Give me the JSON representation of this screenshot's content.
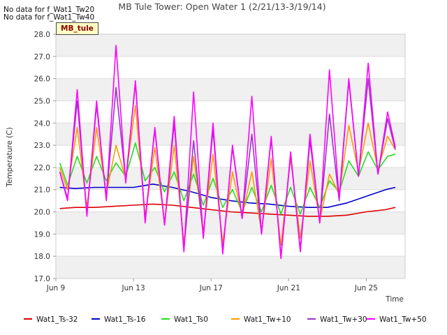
{
  "notes": [
    "No data for f_Wat1_Tw20",
    "No data for f_Wat1_Tw40"
  ],
  "site_tag": "MB_tule",
  "chart_data": {
    "type": "line",
    "title": "MB Tule Tower: Open Water 1 (2/21/13-3/19/14)",
    "xlabel": "Time",
    "ylabel": "Temperature (C)",
    "xlim": [
      0,
      18
    ],
    "ylim": [
      17.0,
      28.0
    ],
    "yticks": [
      17.0,
      18.0,
      19.0,
      20.0,
      21.0,
      22.0,
      23.0,
      24.0,
      25.0,
      26.0,
      27.0,
      28.0
    ],
    "xticks": [
      {
        "x": 0,
        "label": "Jun 9"
      },
      {
        "x": 4,
        "label": "Jun 13"
      },
      {
        "x": 8,
        "label": "Jun 17"
      },
      {
        "x": 12,
        "label": "Jun 21"
      },
      {
        "x": 16,
        "label": "Jun 25"
      }
    ],
    "grid": true,
    "legend": "bottom",
    "series": [
      {
        "name": "Wat1_Ts-32",
        "color": "#dd0000",
        "x": [
          0.2,
          1,
          2,
          3,
          4,
          5,
          6,
          7,
          8,
          9,
          10,
          11,
          12,
          13,
          14,
          15,
          16,
          17,
          17.5
        ],
        "values": [
          20.15,
          20.2,
          20.2,
          20.25,
          20.3,
          20.35,
          20.3,
          20.2,
          20.1,
          20.0,
          19.95,
          19.9,
          19.85,
          19.8,
          19.8,
          19.85,
          20.0,
          20.1,
          20.2
        ]
      },
      {
        "name": "Wat1_Ts-16",
        "color": "#0000cc",
        "x": [
          0.2,
          1,
          2,
          3,
          4,
          5,
          6,
          7,
          8,
          9,
          10,
          11,
          12,
          13,
          14,
          15,
          16,
          17,
          17.5
        ],
        "values": [
          21.1,
          21.05,
          21.1,
          21.1,
          21.1,
          21.25,
          21.1,
          20.9,
          20.65,
          20.5,
          20.4,
          20.35,
          20.25,
          20.2,
          20.2,
          20.4,
          20.7,
          21.0,
          21.1
        ]
      },
      {
        "name": "Wat1_Ts0",
        "color": "#22dd22",
        "x": [
          0.2,
          0.6,
          1.1,
          1.6,
          2.1,
          2.6,
          3.1,
          3.6,
          4.1,
          4.6,
          5.1,
          5.6,
          6.1,
          6.6,
          7.1,
          7.6,
          8.1,
          8.6,
          9.1,
          9.6,
          10.1,
          10.6,
          11.1,
          11.6,
          12.1,
          12.6,
          13.1,
          13.6,
          14.1,
          14.6,
          15.1,
          15.6,
          16.1,
          16.6,
          17.1,
          17.5
        ],
        "values": [
          22.2,
          21.2,
          22.5,
          21.3,
          22.5,
          21.4,
          22.2,
          21.6,
          23.1,
          21.4,
          22.0,
          20.9,
          21.8,
          20.5,
          21.7,
          20.3,
          21.5,
          20.2,
          21.0,
          20.0,
          21.1,
          20.0,
          21.2,
          19.9,
          21.1,
          19.9,
          21.1,
          20.2,
          21.4,
          20.9,
          22.3,
          21.6,
          22.7,
          21.9,
          22.5,
          22.6
        ]
      },
      {
        "name": "Wat1_Tw+10",
        "color": "#ff9900",
        "x": [
          0.2,
          0.6,
          1.1,
          1.6,
          2.1,
          2.6,
          3.1,
          3.6,
          4.1,
          4.6,
          5.1,
          5.6,
          6.1,
          6.6,
          7.1,
          7.6,
          8.1,
          8.6,
          9.1,
          9.6,
          10.1,
          10.6,
          11.1,
          11.6,
          12.1,
          12.6,
          13.1,
          13.6,
          14.1,
          14.6,
          15.1,
          15.6,
          16.1,
          16.6,
          17.1,
          17.5
        ],
        "values": [
          22.0,
          21.0,
          23.8,
          20.2,
          23.8,
          20.8,
          23.0,
          21.5,
          24.8,
          19.8,
          22.9,
          19.5,
          23.0,
          18.6,
          22.5,
          19.1,
          22.6,
          18.6,
          21.8,
          19.8,
          21.8,
          19.1,
          22.4,
          18.5,
          22.4,
          18.8,
          22.3,
          19.6,
          21.7,
          20.8,
          23.9,
          21.8,
          24.0,
          21.9,
          23.4,
          22.8
        ]
      },
      {
        "name": "Wat1_Tw+30",
        "color": "#9933cc",
        "x": [
          0.2,
          0.6,
          1.1,
          1.6,
          2.1,
          2.6,
          3.1,
          3.6,
          4.1,
          4.6,
          5.1,
          5.6,
          6.1,
          6.6,
          7.1,
          7.6,
          8.1,
          8.6,
          9.1,
          9.6,
          10.1,
          10.6,
          11.1,
          11.6,
          12.1,
          12.6,
          13.1,
          13.6,
          14.1,
          14.6,
          15.1,
          15.6,
          16.1,
          16.6,
          17.1,
          17.5
        ],
        "values": [
          21.8,
          20.6,
          25.0,
          19.9,
          24.8,
          20.6,
          25.6,
          21.4,
          25.8,
          19.6,
          23.7,
          19.4,
          24.0,
          18.3,
          23.2,
          18.9,
          23.7,
          18.2,
          22.9,
          19.7,
          23.5,
          19.0,
          23.3,
          18.0,
          22.6,
          18.3,
          23.2,
          19.5,
          24.4,
          20.5,
          25.9,
          21.6,
          26.0,
          21.7,
          24.2,
          22.8
        ]
      },
      {
        "name": "Wat1_Tw+50",
        "color": "#ff00ff",
        "x": [
          0.2,
          0.6,
          1.1,
          1.6,
          2.1,
          2.6,
          3.1,
          3.6,
          4.1,
          4.6,
          5.1,
          5.6,
          6.1,
          6.6,
          7.1,
          7.6,
          8.1,
          8.6,
          9.1,
          9.6,
          10.1,
          10.6,
          11.1,
          11.6,
          12.1,
          12.6,
          13.1,
          13.6,
          14.1,
          14.6,
          15.1,
          15.6,
          16.1,
          16.6,
          17.1,
          17.5
        ],
        "values": [
          21.8,
          20.5,
          25.5,
          19.8,
          25.0,
          20.5,
          27.5,
          21.3,
          25.9,
          19.5,
          23.8,
          19.4,
          24.3,
          18.2,
          25.4,
          18.8,
          24.0,
          18.1,
          23.0,
          19.7,
          25.2,
          19.0,
          23.4,
          17.9,
          22.7,
          18.2,
          23.5,
          19.5,
          26.4,
          20.6,
          26.0,
          21.6,
          26.7,
          21.7,
          24.5,
          22.9
        ]
      }
    ]
  }
}
